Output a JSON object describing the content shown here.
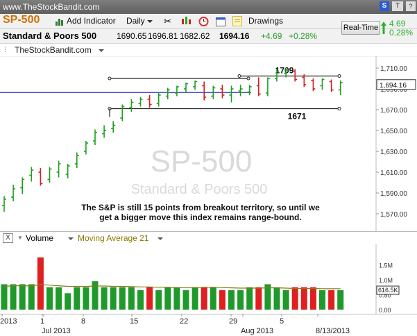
{
  "site_url": "www.TheStockBandit.com",
  "toolbar": {
    "symbol": "SP-500",
    "add_indicator": "Add Indicator",
    "period": "Daily",
    "drawings": "Drawings",
    "realtime": "Real-Time",
    "change_pts": "4.69",
    "change_pct": "0.28%"
  },
  "quote": {
    "name": "Standard & Poors 500",
    "open": "1690.65",
    "high": "1696.81",
    "low": "1682.62",
    "last": "1694.16",
    "change": "+4.69",
    "change_pct": "+0.28%"
  },
  "source_label": "TheStockBandit.com",
  "volume_panel": {
    "label": "Volume",
    "ma_label": "Moving Average 21",
    "ticks": [
      "1.5M",
      "1.0M",
      "0.50",
      "0.00"
    ],
    "last_label": "616.5K"
  },
  "chart_data": {
    "type": "ohlc",
    "watermark_symbol": "SP-500",
    "watermark_name": "Standard & Poors 500",
    "annotation": "The S&P is still 15 points from breakout territory, so until we get a bigger move this index remains range-bound.",
    "y_ticks": [
      1710,
      1690,
      1670,
      1650,
      1630,
      1610,
      1590,
      1570
    ],
    "y_tick_labels": [
      "1,710.00",
      "1,690.00",
      "1,670.00",
      "1,650.00",
      "1,630.00",
      "1,610.00",
      "1,590.00",
      "1,570.00"
    ],
    "ylim": [
      1560,
      1716
    ],
    "last_price_label": "1,694.16",
    "last_price": 1694.16,
    "levels": [
      {
        "label": "1709",
        "value": 1709
      },
      {
        "label": "1671",
        "value": 1671
      }
    ],
    "horizontal_line": 1686.5,
    "range_box_top": 1700,
    "x_labels": [
      "2013",
      "1",
      "Jul 2013",
      "8",
      "15",
      "22",
      "29",
      "Aug 2013",
      "5",
      "8/13/2013"
    ],
    "bars": [
      {
        "o": 1578,
        "h": 1587,
        "l": 1572,
        "c": 1584,
        "up": true,
        "v": 0.85
      },
      {
        "o": 1586,
        "h": 1598,
        "l": 1582,
        "c": 1594,
        "up": true,
        "v": 0.85
      },
      {
        "o": 1595,
        "h": 1605,
        "l": 1589,
        "c": 1603,
        "up": true,
        "v": 0.85
      },
      {
        "o": 1607,
        "h": 1615,
        "l": 1601,
        "c": 1612,
        "up": true,
        "v": 0.85
      },
      {
        "o": 1610,
        "h": 1614,
        "l": 1597,
        "c": 1599,
        "up": false,
        "v": 1.75
      },
      {
        "o": 1603,
        "h": 1615,
        "l": 1600,
        "c": 1613,
        "up": true,
        "v": 0.75
      },
      {
        "o": 1610,
        "h": 1621,
        "l": 1605,
        "c": 1618,
        "up": true,
        "v": 0.75
      },
      {
        "o": 1608,
        "h": 1618,
        "l": 1604,
        "c": 1616,
        "up": true,
        "v": 0.55
      },
      {
        "o": 1618,
        "h": 1629,
        "l": 1614,
        "c": 1626,
        "up": true,
        "v": 0.75
      },
      {
        "o": 1630,
        "h": 1640,
        "l": 1627,
        "c": 1638,
        "up": true,
        "v": 0.75
      },
      {
        "o": 1640,
        "h": 1651,
        "l": 1636,
        "c": 1648,
        "up": true,
        "v": 0.95
      },
      {
        "o": 1647,
        "h": 1655,
        "l": 1643,
        "c": 1650,
        "up": true,
        "v": 0.75
      },
      {
        "o": 1652,
        "h": 1659,
        "l": 1648,
        "c": 1655,
        "up": true,
        "v": 0.75
      },
      {
        "o": 1662,
        "h": 1675,
        "l": 1659,
        "c": 1673,
        "up": true,
        "v": 0.75
      },
      {
        "o": 1672,
        "h": 1680,
        "l": 1668,
        "c": 1677,
        "up": true,
        "v": 0.75
      },
      {
        "o": 1676,
        "h": 1682,
        "l": 1673,
        "c": 1680,
        "up": true,
        "v": 0.65
      },
      {
        "o": 1680,
        "h": 1684,
        "l": 1672,
        "c": 1675,
        "up": false,
        "v": 0.75
      },
      {
        "o": 1676,
        "h": 1686,
        "l": 1673,
        "c": 1684,
        "up": true,
        "v": 0.65
      },
      {
        "o": 1683,
        "h": 1691,
        "l": 1680,
        "c": 1689,
        "up": true,
        "v": 0.75
      },
      {
        "o": 1686,
        "h": 1693,
        "l": 1683,
        "c": 1692,
        "up": true,
        "v": 0.75
      },
      {
        "o": 1690,
        "h": 1696,
        "l": 1686,
        "c": 1695,
        "up": true,
        "v": 0.65
      },
      {
        "o": 1692,
        "h": 1698,
        "l": 1689,
        "c": 1697,
        "up": true,
        "v": 0.75
      },
      {
        "o": 1693,
        "h": 1697,
        "l": 1679,
        "c": 1682,
        "up": false,
        "v": 0.75
      },
      {
        "o": 1683,
        "h": 1693,
        "l": 1680,
        "c": 1691,
        "up": true,
        "v": 0.75
      },
      {
        "o": 1690,
        "h": 1694,
        "l": 1681,
        "c": 1684,
        "up": false,
        "v": 0.65
      },
      {
        "o": 1684,
        "h": 1693,
        "l": 1677,
        "c": 1690,
        "up": true,
        "v": 0.65
      },
      {
        "o": 1688,
        "h": 1694,
        "l": 1683,
        "c": 1690,
        "up": true,
        "v": 0.65
      },
      {
        "o": 1687,
        "h": 1694,
        "l": 1684,
        "c": 1692,
        "up": true,
        "v": 0.75
      },
      {
        "o": 1693,
        "h": 1701,
        "l": 1683,
        "c": 1685,
        "up": false,
        "v": 0.75
      },
      {
        "o": 1686,
        "h": 1701,
        "l": 1683,
        "c": 1700,
        "up": true,
        "v": 0.85
      },
      {
        "o": 1700,
        "h": 1709,
        "l": 1697,
        "c": 1707,
        "up": true,
        "v": 0.75
      },
      {
        "o": 1705,
        "h": 1710,
        "l": 1701,
        "c": 1708,
        "up": true,
        "v": 0.65
      },
      {
        "o": 1707,
        "h": 1709,
        "l": 1697,
        "c": 1699,
        "up": false,
        "v": 0.75
      },
      {
        "o": 1701,
        "h": 1704,
        "l": 1692,
        "c": 1694,
        "up": false,
        "v": 0.75
      },
      {
        "o": 1698,
        "h": 1700,
        "l": 1688,
        "c": 1690,
        "up": false,
        "v": 0.75
      },
      {
        "o": 1693,
        "h": 1700,
        "l": 1689,
        "c": 1699,
        "up": true,
        "v": 0.65
      },
      {
        "o": 1697,
        "h": 1699,
        "l": 1687,
        "c": 1689,
        "up": false,
        "v": 0.65
      },
      {
        "o": 1689,
        "h": 1698,
        "l": 1684,
        "c": 1696,
        "up": true,
        "v": 0.65
      }
    ],
    "volume_ma": [
      0.78,
      0.8,
      0.8,
      0.79,
      0.84,
      0.82,
      0.8,
      0.78,
      0.78,
      0.78,
      0.79,
      0.79,
      0.78,
      0.78,
      0.77,
      0.76,
      0.76,
      0.75,
      0.75,
      0.74,
      0.74,
      0.74,
      0.75,
      0.75,
      0.74,
      0.73,
      0.72,
      0.72,
      0.72,
      0.73,
      0.73,
      0.72,
      0.71,
      0.71,
      0.71,
      0.7,
      0.7,
      0.7
    ]
  }
}
